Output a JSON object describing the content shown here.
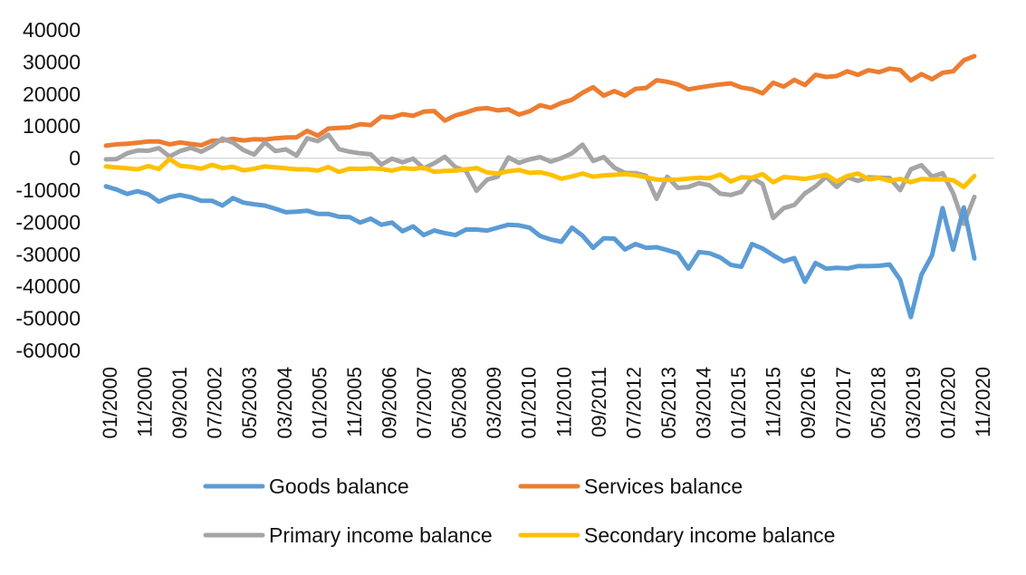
{
  "chart_data": {
    "type": "line",
    "title": "",
    "xlabel": "",
    "ylabel": "",
    "ylim": [
      -60000,
      40000
    ],
    "y_ticks": [
      "40000",
      "30000",
      "20000",
      "10000",
      "0",
      "-10000",
      "-20000",
      "-30000",
      "-40000",
      "-50000",
      "-60000"
    ],
    "x_tick_labels": [
      "01/2000",
      "11/2000",
      "09/2001",
      "07/2002",
      "05/2003",
      "03/2004",
      "01/2005",
      "11/2005",
      "09/2006",
      "07/2007",
      "05/2008",
      "03/2009",
      "01/2010",
      "11/2010",
      "09/2011",
      "07/2012",
      "05/2013",
      "03/2014",
      "01/2015",
      "11/2015",
      "09/2016",
      "07/2017",
      "05/2018",
      "03/2019",
      "01/2020",
      "11/2020"
    ],
    "grid": false,
    "legend_position": "bottom",
    "point_spacing": "quarterly, 01/2000 to 07/2020",
    "series": [
      {
        "name": "Goods balance",
        "color": "#5B9BD5",
        "values": [
          -8800,
          -9800,
          -11200,
          -10300,
          -11300,
          -13600,
          -12200,
          -11500,
          -12200,
          -13300,
          -13300,
          -14800,
          -12500,
          -13900,
          -14400,
          -14800,
          -15800,
          -16900,
          -16700,
          -16400,
          -17400,
          -17400,
          -18300,
          -18400,
          -20100,
          -18900,
          -20800,
          -20100,
          -22800,
          -21300,
          -24000,
          -22600,
          -23400,
          -24000,
          -22300,
          -22300,
          -22600,
          -21700,
          -20800,
          -21000,
          -21700,
          -24300,
          -25400,
          -26100,
          -21700,
          -24200,
          -28000,
          -25000,
          -25100,
          -28500,
          -26800,
          -28000,
          -27800,
          -28700,
          -29700,
          -34500,
          -29300,
          -29700,
          -31000,
          -33300,
          -33900,
          -26800,
          -28200,
          -30300,
          -32200,
          -31200,
          -38600,
          -32700,
          -34500,
          -34200,
          -34400,
          -33700,
          -33700,
          -33600,
          -33200,
          -38000,
          -49600,
          -36400,
          -30300,
          -15600,
          -28600,
          -15400,
          -31300
        ]
      },
      {
        "name": "Services balance",
        "color": "#ED7D31",
        "values": [
          3900,
          4300,
          4500,
          4800,
          5200,
          5200,
          4300,
          4900,
          4400,
          4000,
          5400,
          5500,
          6000,
          5500,
          5900,
          5800,
          6200,
          6400,
          6500,
          8500,
          7000,
          9200,
          9400,
          9600,
          10600,
          10300,
          12900,
          12700,
          13700,
          13200,
          14500,
          14700,
          11700,
          13300,
          14200,
          15300,
          15600,
          14900,
          15200,
          13600,
          14600,
          16500,
          15700,
          17200,
          18200,
          20400,
          22100,
          19500,
          20900,
          19500,
          21600,
          21900,
          24300,
          23800,
          23000,
          21400,
          22000,
          22500,
          23000,
          23300,
          22000,
          21500,
          20200,
          23500,
          22300,
          24400,
          22800,
          26000,
          25300,
          25600,
          27100,
          26000,
          27400,
          26800,
          27900,
          27500,
          24200,
          26200,
          24600,
          26600,
          27100,
          30500,
          31800
        ]
      },
      {
        "name": "Primary income balance",
        "color": "#A5A5A5",
        "values": [
          -400,
          -300,
          1500,
          2400,
          2300,
          3100,
          500,
          2200,
          3200,
          2000,
          3700,
          6100,
          4800,
          2500,
          1100,
          4900,
          2200,
          2700,
          800,
          6200,
          5300,
          7300,
          2800,
          2000,
          1500,
          1200,
          -2000,
          -200,
          -1300,
          -200,
          -3200,
          -1600,
          400,
          -2800,
          -4000,
          -10200,
          -6700,
          -5800,
          200,
          -1500,
          -400,
          300,
          -1100,
          0,
          1500,
          4200,
          -900,
          300,
          -3000,
          -4600,
          -4700,
          -5500,
          -12700,
          -5800,
          -9300,
          -9000,
          -7800,
          -8500,
          -11100,
          -11500,
          -10500,
          -6200,
          -8100,
          -18700,
          -15600,
          -14600,
          -11000,
          -8800,
          -5800,
          -9000,
          -6000,
          -7100,
          -6000,
          -6100,
          -6200,
          -10000,
          -3500,
          -2200,
          -5800,
          -4700,
          -11000,
          -20500,
          -12100
        ]
      },
      {
        "name": "Secondary income balance",
        "color": "#FFC000",
        "values": [
          -2600,
          -2900,
          -3200,
          -3500,
          -2500,
          -3400,
          -300,
          -2400,
          -2700,
          -3300,
          -2100,
          -3100,
          -2700,
          -3800,
          -3300,
          -2600,
          -2900,
          -3200,
          -3500,
          -3500,
          -3900,
          -2800,
          -4300,
          -3300,
          -3400,
          -3200,
          -3400,
          -3900,
          -3100,
          -3400,
          -3000,
          -4300,
          -4000,
          -3900,
          -3500,
          -3100,
          -4500,
          -4800,
          -4100,
          -3700,
          -4600,
          -4400,
          -5200,
          -6400,
          -5700,
          -4800,
          -5800,
          -5400,
          -5200,
          -5000,
          -5300,
          -6000,
          -6700,
          -6800,
          -6700,
          -6400,
          -6100,
          -6300,
          -5100,
          -7300,
          -6000,
          -6100,
          -5000,
          -7500,
          -5900,
          -6200,
          -6500,
          -5900,
          -5200,
          -7300,
          -5600,
          -4800,
          -6600,
          -6200,
          -7100,
          -6500,
          -7500,
          -6500,
          -6700,
          -6600,
          -6900,
          -9000,
          -5600
        ]
      }
    ]
  }
}
